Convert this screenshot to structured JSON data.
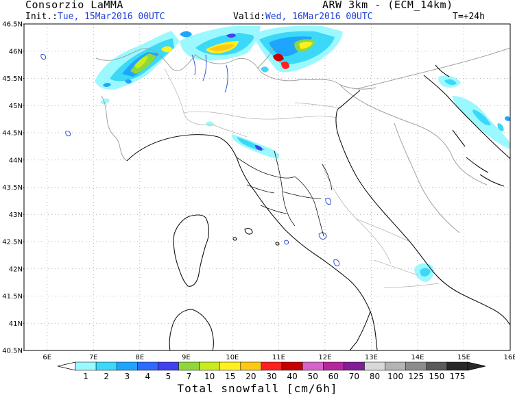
{
  "header": {
    "center": "Consorzio LaMMA",
    "model": "ARW 3km - (ECM_14km)",
    "init_label": "Init.:",
    "init_value": "Tue, 15Mar2016 00UTC",
    "valid_label": "Valid:",
    "valid_value": "Wed, 16Mar2016 00UTC",
    "lead_time": "T=+24h"
  },
  "map": {
    "lat_labels": [
      "46.5N",
      "46N",
      "45.5N",
      "45N",
      "44.5N",
      "44N",
      "43.5N",
      "43N",
      "42.5N",
      "42N",
      "41.5N",
      "41N",
      "40.5N"
    ],
    "lon_labels": [
      "6E",
      "7E",
      "8E",
      "9E",
      "10E",
      "11E",
      "12E",
      "13E",
      "14E",
      "15E",
      "16E"
    ],
    "lat_range": [
      40.5,
      46.5
    ],
    "lon_range": [
      5.5,
      16
    ]
  },
  "colorbar": {
    "title": "Total snowfall [cm/6h]",
    "levels": [
      "1",
      "2",
      "3",
      "4",
      "5",
      "7",
      "10",
      "15",
      "20",
      "30",
      "40",
      "50",
      "60",
      "70",
      "80",
      "100",
      "125",
      "150",
      "175"
    ],
    "colors": [
      "#9cf8ff",
      "#3cd8f8",
      "#1ea6ff",
      "#2f6aff",
      "#4040ef",
      "#8fd83c",
      "#c8ec1e",
      "#fff01e",
      "#ffc814",
      "#ff2020",
      "#c80000",
      "#d464c8",
      "#b4289c",
      "#821e96",
      "#d8d8d8",
      "#b4b4b4",
      "#8c8c8c",
      "#5a5a5a",
      "#282828"
    ],
    "under_color": "#ffffff",
    "over_color": "#282828"
  }
}
